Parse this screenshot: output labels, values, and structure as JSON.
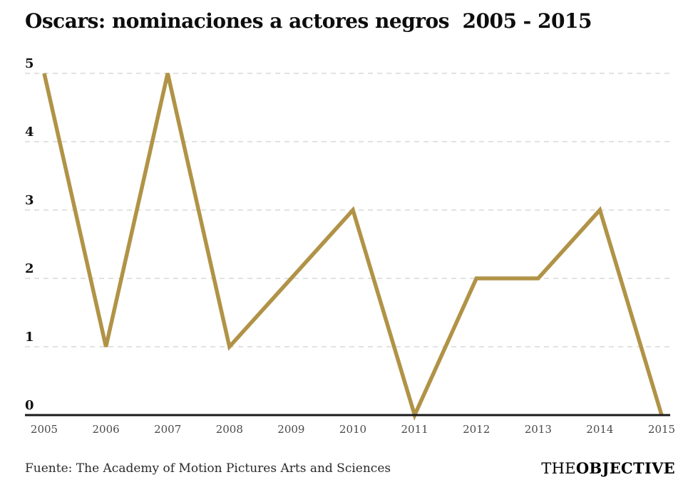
{
  "page": {
    "title": "Oscars: nominaciones a actores negros  2005 - 2015",
    "source": "Fuente: The Academy of Motion Pictures Arts and Sciences",
    "brand": {
      "prefix": "THE",
      "suffix": "OBJECTIVE"
    }
  },
  "chart_data": {
    "type": "line",
    "title": "Oscars: nominaciones a actores negros 2005 - 2015",
    "categories": [
      "2005",
      "2006",
      "2007",
      "2008",
      "2009",
      "2010",
      "2011",
      "2012",
      "2013",
      "2014",
      "2015"
    ],
    "values": [
      5,
      1,
      5,
      1,
      2,
      3,
      0,
      2,
      2,
      3,
      0
    ],
    "xlabel": "",
    "ylabel": "",
    "ylim": [
      0,
      5
    ],
    "yticks": [
      0,
      1,
      2,
      3,
      4,
      5
    ],
    "grid": true,
    "grid_style": "dashed",
    "legend": false,
    "colors": {
      "line": "#b19347",
      "grid": "#d8d8d8",
      "axis": "#1a1a1a",
      "ytick_label": "#111111",
      "xtick_label": "#4a4a4a"
    }
  }
}
